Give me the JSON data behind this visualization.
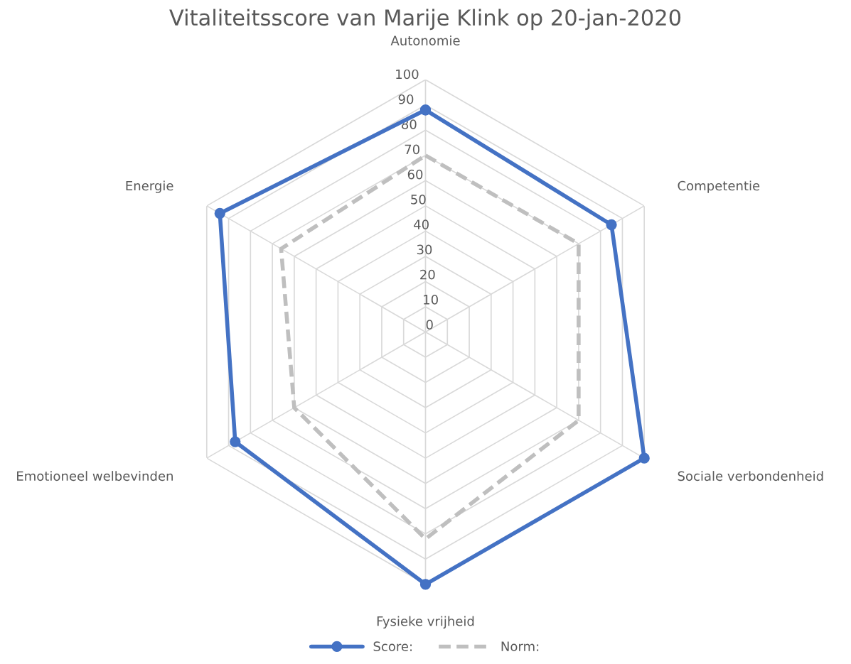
{
  "chart_data": {
    "type": "radar",
    "title": "Vitaliteitsscore van Marije Klink op 20-jan-2020",
    "categories": [
      "Autonomie",
      "Competentie",
      "Sociale verbondenheid",
      "Fysieke vrijheid",
      "Emotioneel welbevinden",
      "Energie"
    ],
    "series": [
      {
        "name": "Score:",
        "color": "#4472c4",
        "values": [
          88,
          85,
          100,
          100,
          87,
          94
        ],
        "marker": "circle",
        "line_style": "solid"
      },
      {
        "name": "Norm:",
        "color": "#bfbfbf",
        "values": [
          70,
          70,
          70,
          82,
          60,
          66
        ],
        "marker": "none",
        "line_style": "dashed"
      }
    ],
    "ylim": [
      0,
      100
    ],
    "yticks": [
      0,
      10,
      20,
      30,
      40,
      50,
      60,
      70,
      80,
      90,
      100
    ],
    "grid": true,
    "legend": "bottom"
  }
}
